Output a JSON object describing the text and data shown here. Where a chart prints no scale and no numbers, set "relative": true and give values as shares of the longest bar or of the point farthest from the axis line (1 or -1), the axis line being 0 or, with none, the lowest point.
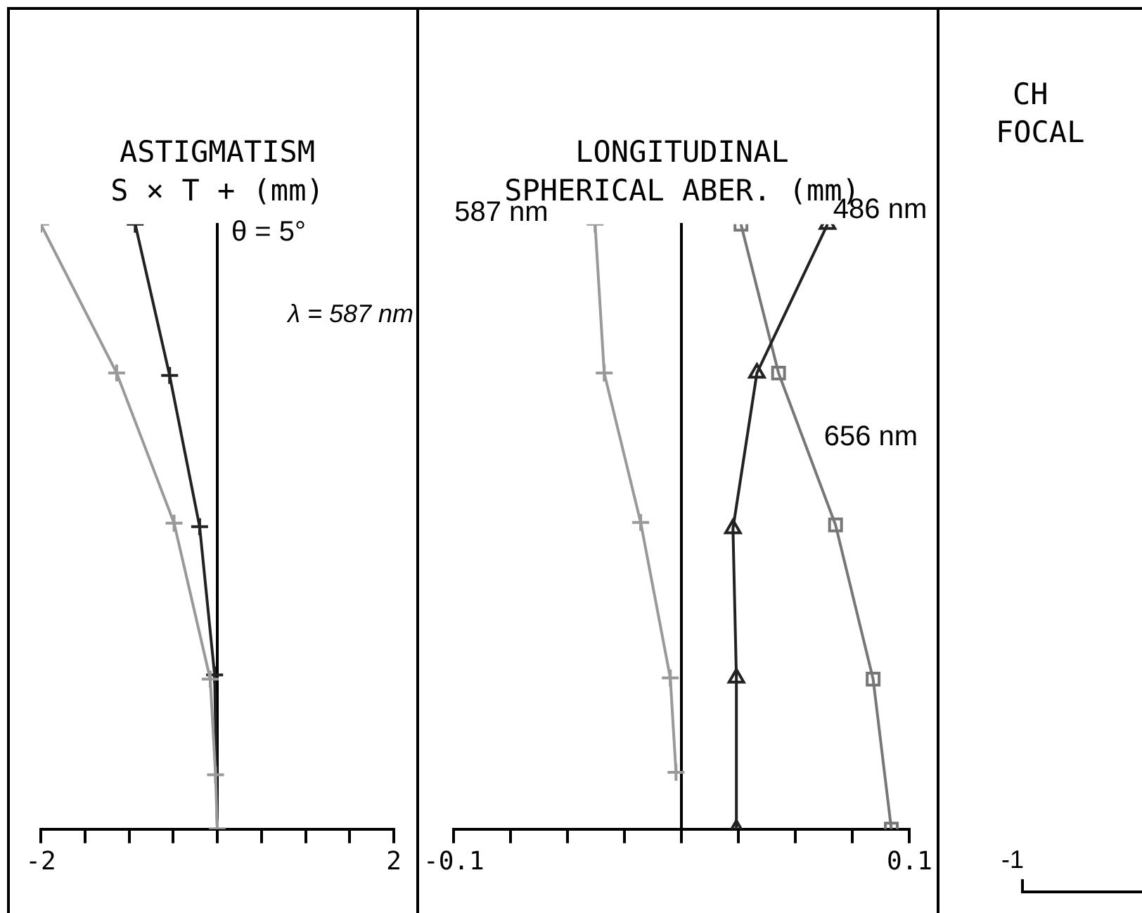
{
  "chart_data": [
    {
      "type": "line",
      "title": "ASTIGMATISM",
      "subtitle": "S × T + (mm)",
      "relative": true,
      "xlim": [
        -2,
        2
      ],
      "xticks": [
        -2,
        {
          "value": -1.5,
          "label": null
        },
        {
          "value": -1,
          "label": null
        },
        {
          "value": -0.5,
          "label": null
        },
        {
          "value": 0,
          "label": null
        },
        {
          "value": 0.5,
          "label": null
        },
        {
          "value": 1,
          "label": null
        },
        {
          "value": 1.5,
          "label": null
        },
        2
      ],
      "annotations": [
        "θ = 5°",
        "λ = 587 nm"
      ],
      "series": [
        {
          "color": "#999999",
          "marker": "cross",
          "x": [
            -2.0,
            -1.14,
            -0.49,
            -0.08,
            -0.02,
            0
          ],
          "values": [
            1,
            0.754,
            0.506,
            0.248,
            0.09,
            0
          ]
        },
        {
          "color": "#222222",
          "marker": "cross",
          "x": [
            -0.93,
            -0.54,
            -0.2,
            -0.03,
            0
          ],
          "values": [
            1,
            0.75,
            0.5,
            0.255,
            0
          ]
        }
      ]
    },
    {
      "type": "line",
      "title": "LONGITUDINAL",
      "subtitle": "SPHERICAL ABER. (mm)",
      "relative": true,
      "xlim": [
        -0.1,
        0.1
      ],
      "xticks": [
        -0.1,
        {
          "value": -0.075,
          "label": null
        },
        {
          "value": -0.05,
          "label": null
        },
        {
          "value": -0.025,
          "label": null
        },
        {
          "value": 0,
          "label": null
        },
        {
          "value": 0.025,
          "label": null
        },
        {
          "value": 0.05,
          "label": null
        },
        {
          "value": 0.075,
          "label": null
        },
        0.1
      ],
      "series": [
        {
          "name": "587 nm",
          "color": "#999999",
          "marker": "cross",
          "x": [
            -0.038,
            -0.034,
            -0.018,
            -0.005,
            -0.0025
          ],
          "values": [
            1,
            0.754,
            0.507,
            0.25,
            0.094
          ]
        },
        {
          "name": "486 nm",
          "color": "#222222",
          "marker": "triangle",
          "x": [
            0.064,
            0.033,
            0.0225,
            0.024,
            0.024
          ],
          "values": [
            1,
            0.754,
            0.497,
            0.25,
            0
          ]
        },
        {
          "name": "656 nm",
          "color": "#777777",
          "marker": "square",
          "x": [
            0.026,
            0.0425,
            0.0675,
            0.084,
            0.092
          ],
          "values": [
            1,
            0.754,
            0.503,
            0.248,
            0
          ]
        }
      ]
    },
    {
      "type": "other",
      "title": "CH",
      "subtitle": "FOCAL",
      "annotations": [
        "-1"
      ]
    }
  ]
}
